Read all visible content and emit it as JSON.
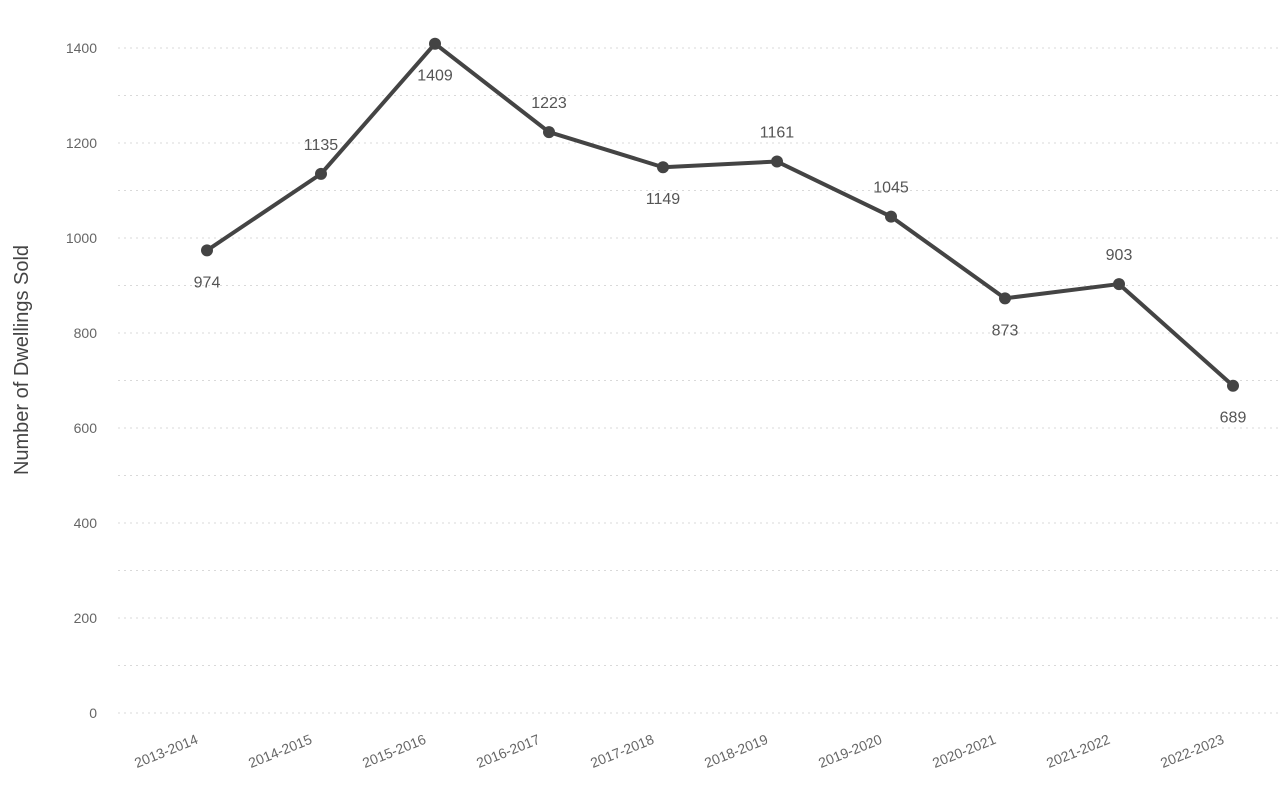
{
  "chart_data": {
    "type": "line",
    "title": "",
    "xlabel": "",
    "ylabel": "Number of Dwellings Sold",
    "categories": [
      "2013-2014",
      "2014-2015",
      "2015-2016",
      "2016-2017",
      "2017-2018",
      "2018-2019",
      "2019-2020",
      "2020-2021",
      "2021-2022",
      "2022-2023"
    ],
    "values": [
      974,
      1135,
      1409,
      1223,
      1149,
      1161,
      1045,
      873,
      903,
      689
    ],
    "ylim": [
      0,
      1400
    ],
    "yticks": [
      0,
      200,
      400,
      600,
      800,
      1000,
      1200,
      1400
    ],
    "grid": true,
    "legend": "none",
    "label_positions": [
      "below",
      "above",
      "below",
      "above",
      "below",
      "above",
      "above",
      "below",
      "above",
      "below"
    ],
    "colors": {
      "line": "#444444",
      "marker": "#444444",
      "grid": "#d9d9d9",
      "tick_text": "#666666",
      "label_text": "#555555"
    }
  }
}
